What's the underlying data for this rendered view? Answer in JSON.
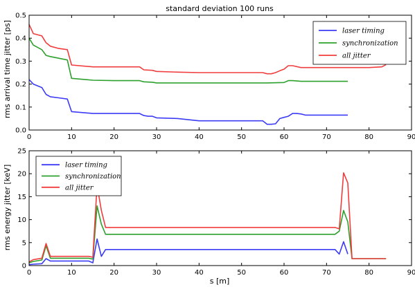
{
  "chart_data": [
    {
      "type": "line",
      "title": "standard deviation 100 runs",
      "xlabel": "",
      "ylabel": "rms arrival time jitter [ps]",
      "xlim": [
        0,
        90
      ],
      "ylim": [
        0,
        0.5
      ],
      "xticks": [
        "0",
        "10",
        "20",
        "30",
        "40",
        "50",
        "60",
        "70",
        "80",
        "90"
      ],
      "yticks": [
        "0.0",
        "0.1",
        "0.2",
        "0.3",
        "0.4",
        "0.5"
      ],
      "legend": "top-right",
      "grid": false,
      "series": [
        {
          "name": "laser timing",
          "color": "#3b3bf5",
          "x": [
            0,
            1,
            3,
            4,
            5,
            7,
            9,
            10,
            15,
            20,
            26,
            27,
            28,
            29,
            30,
            35,
            40,
            50,
            55,
            56,
            57,
            58,
            59,
            60,
            61,
            62,
            63,
            64,
            65,
            75
          ],
          "y": [
            0.22,
            0.2,
            0.185,
            0.155,
            0.145,
            0.14,
            0.135,
            0.08,
            0.072,
            0.072,
            0.072,
            0.063,
            0.06,
            0.06,
            0.053,
            0.05,
            0.04,
            0.04,
            0.04,
            0.025,
            0.025,
            0.027,
            0.05,
            0.055,
            0.06,
            0.072,
            0.072,
            0.07,
            0.065,
            0.065
          ]
        },
        {
          "name": "synchronization",
          "color": "#2ca02c",
          "x": [
            0,
            1,
            3,
            4,
            5,
            9,
            10,
            15,
            20,
            26,
            27,
            29,
            30,
            35,
            40,
            50,
            56,
            60,
            61,
            62,
            64,
            75
          ],
          "y": [
            0.4,
            0.37,
            0.35,
            0.325,
            0.32,
            0.305,
            0.225,
            0.217,
            0.215,
            0.215,
            0.21,
            0.208,
            0.205,
            0.205,
            0.205,
            0.205,
            0.205,
            0.207,
            0.215,
            0.215,
            0.212,
            0.212
          ]
        },
        {
          "name": "all jitter",
          "color": "#f03c3c",
          "x": [
            0,
            1,
            3,
            4,
            5,
            7,
            9,
            10,
            15,
            20,
            26,
            27,
            29,
            30,
            35,
            40,
            50,
            55,
            56,
            57,
            58,
            59,
            60,
            61,
            62,
            64,
            70,
            80,
            83,
            84
          ],
          "y": [
            0.46,
            0.42,
            0.41,
            0.38,
            0.365,
            0.355,
            0.35,
            0.283,
            0.275,
            0.275,
            0.275,
            0.262,
            0.26,
            0.255,
            0.252,
            0.25,
            0.25,
            0.25,
            0.245,
            0.245,
            0.25,
            0.258,
            0.265,
            0.28,
            0.28,
            0.272,
            0.272,
            0.272,
            0.275,
            0.285
          ]
        }
      ]
    },
    {
      "type": "line",
      "title": "",
      "xlabel": "s [m]",
      "ylabel": "rms energy jitter [keV]",
      "xlim": [
        0,
        90
      ],
      "ylim": [
        0,
        25
      ],
      "xticks": [
        "0",
        "10",
        "20",
        "30",
        "40",
        "50",
        "60",
        "70",
        "80",
        "90"
      ],
      "yticks": [
        "0",
        "5",
        "10",
        "15",
        "20",
        "25"
      ],
      "legend": "top-left",
      "grid": false,
      "series": [
        {
          "name": "laser timing",
          "color": "#3b3bf5",
          "x": [
            0,
            1,
            3,
            4,
            5,
            10,
            14,
            15,
            16,
            17,
            18,
            20,
            30,
            40,
            50,
            60,
            70,
            72,
            73,
            74,
            75
          ],
          "y": [
            0.2,
            0.3,
            0.4,
            1.5,
            1.0,
            1.0,
            1.0,
            0.6,
            5.8,
            2.0,
            3.5,
            3.5,
            3.5,
            3.5,
            3.5,
            3.5,
            3.5,
            3.5,
            2.5,
            5.2,
            2.5
          ]
        },
        {
          "name": "synchronization",
          "color": "#2ca02c",
          "x": [
            0,
            1,
            3,
            4,
            5,
            10,
            14,
            15,
            16,
            17,
            18,
            20,
            30,
            40,
            50,
            60,
            70,
            72,
            73,
            74,
            75,
            76,
            84
          ],
          "y": [
            0.6,
            0.9,
            1.2,
            4.3,
            1.6,
            1.6,
            1.6,
            1.4,
            13.0,
            9.0,
            6.8,
            6.8,
            6.8,
            6.8,
            6.8,
            6.8,
            6.8,
            6.8,
            7.5,
            12.0,
            9.5,
            1.5,
            1.5
          ]
        },
        {
          "name": "all jitter",
          "color": "#f03c3c",
          "x": [
            0,
            1,
            3,
            4,
            5,
            10,
            14,
            15,
            16,
            17,
            18,
            20,
            30,
            40,
            50,
            60,
            70,
            72,
            73,
            74,
            75,
            76,
            84
          ],
          "y": [
            0.8,
            1.3,
            1.6,
            4.8,
            2.0,
            2.0,
            2.0,
            1.8,
            17.5,
            12.0,
            8.3,
            8.3,
            8.3,
            8.3,
            8.3,
            8.3,
            8.3,
            8.3,
            8.0,
            20.2,
            18.0,
            1.5,
            1.5
          ]
        }
      ]
    }
  ]
}
